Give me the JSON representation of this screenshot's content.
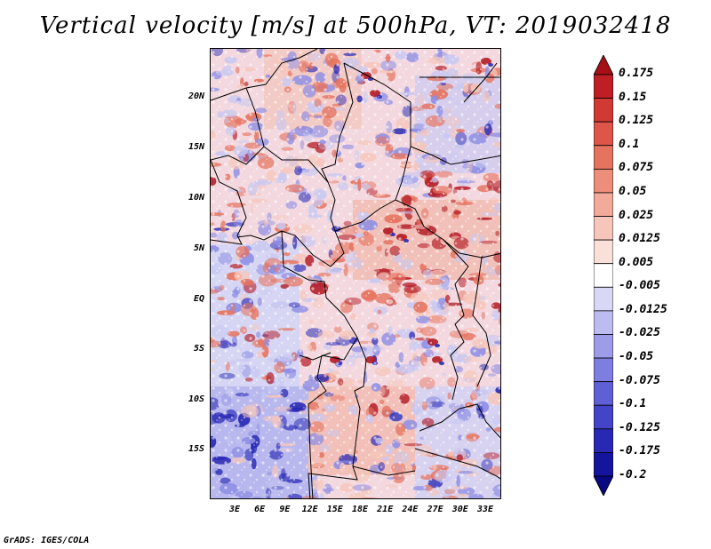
{
  "title": "Vertical velocity [m/s] at 500hPa, VT: 2019032418",
  "latitude_labels": [
    "20N",
    "15N",
    "10N",
    "5N",
    "EQ",
    "5S",
    "10S",
    "15S"
  ],
  "longitude_labels": [
    "3E",
    "6E",
    "9E",
    "12E",
    "15E",
    "18E",
    "21E",
    "24E",
    "27E",
    "30E",
    "33E"
  ],
  "colorbar": {
    "labels": [
      "0.175",
      "0.15",
      "0.125",
      "0.1",
      "0.075",
      "0.05",
      "0.025",
      "0.0125",
      "0.005",
      "-0.005",
      "-0.0125",
      "-0.025",
      "-0.05",
      "-0.075",
      "-0.1",
      "-0.125",
      "-0.175",
      "-0.2"
    ],
    "colors": [
      "#a50f15",
      "#be1e24",
      "#d13a34",
      "#de5549",
      "#e6735f",
      "#ec8e79",
      "#f2aa9a",
      "#f6c6ba",
      "#f9e0d9",
      "#ffffff",
      "#d8d8f6",
      "#bcbcf0",
      "#9c9ce8",
      "#7e7ee0",
      "#5f5fd6",
      "#4444c8",
      "#2828b4",
      "#14149c",
      "#080880"
    ]
  },
  "footer": "GrADS: IGES/COLA",
  "map_colors": {
    "strong_up": "#b31b25",
    "up": "#e6735f",
    "weak_up": "#f6c6ba",
    "weak_down": "#c8c8f2",
    "down": "#8c8ce4",
    "strong_down": "#2828b4",
    "boundary": "#000000"
  }
}
